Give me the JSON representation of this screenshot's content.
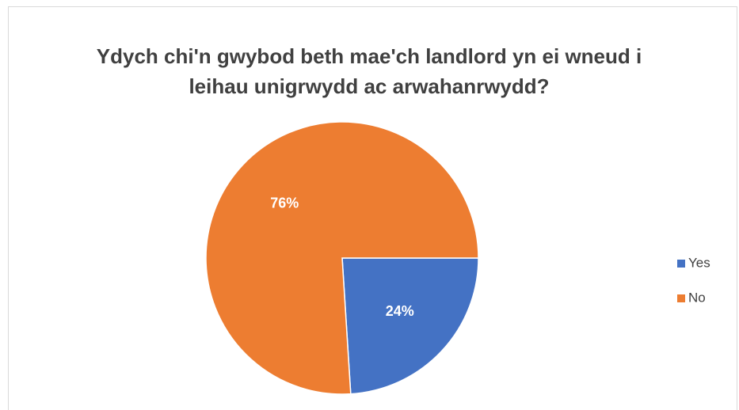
{
  "chart_data": {
    "type": "pie",
    "title": "Ydych chi'n gwybod beth mae'ch landlord yn ei wneud i leihau unigrwydd ac arwahanrwydd?",
    "categories": [
      "Yes",
      "No"
    ],
    "values": [
      24,
      76
    ],
    "value_labels": [
      "24%",
      "76%"
    ],
    "colors": [
      "#4472c4",
      "#ed7d31"
    ],
    "legend": "right"
  }
}
